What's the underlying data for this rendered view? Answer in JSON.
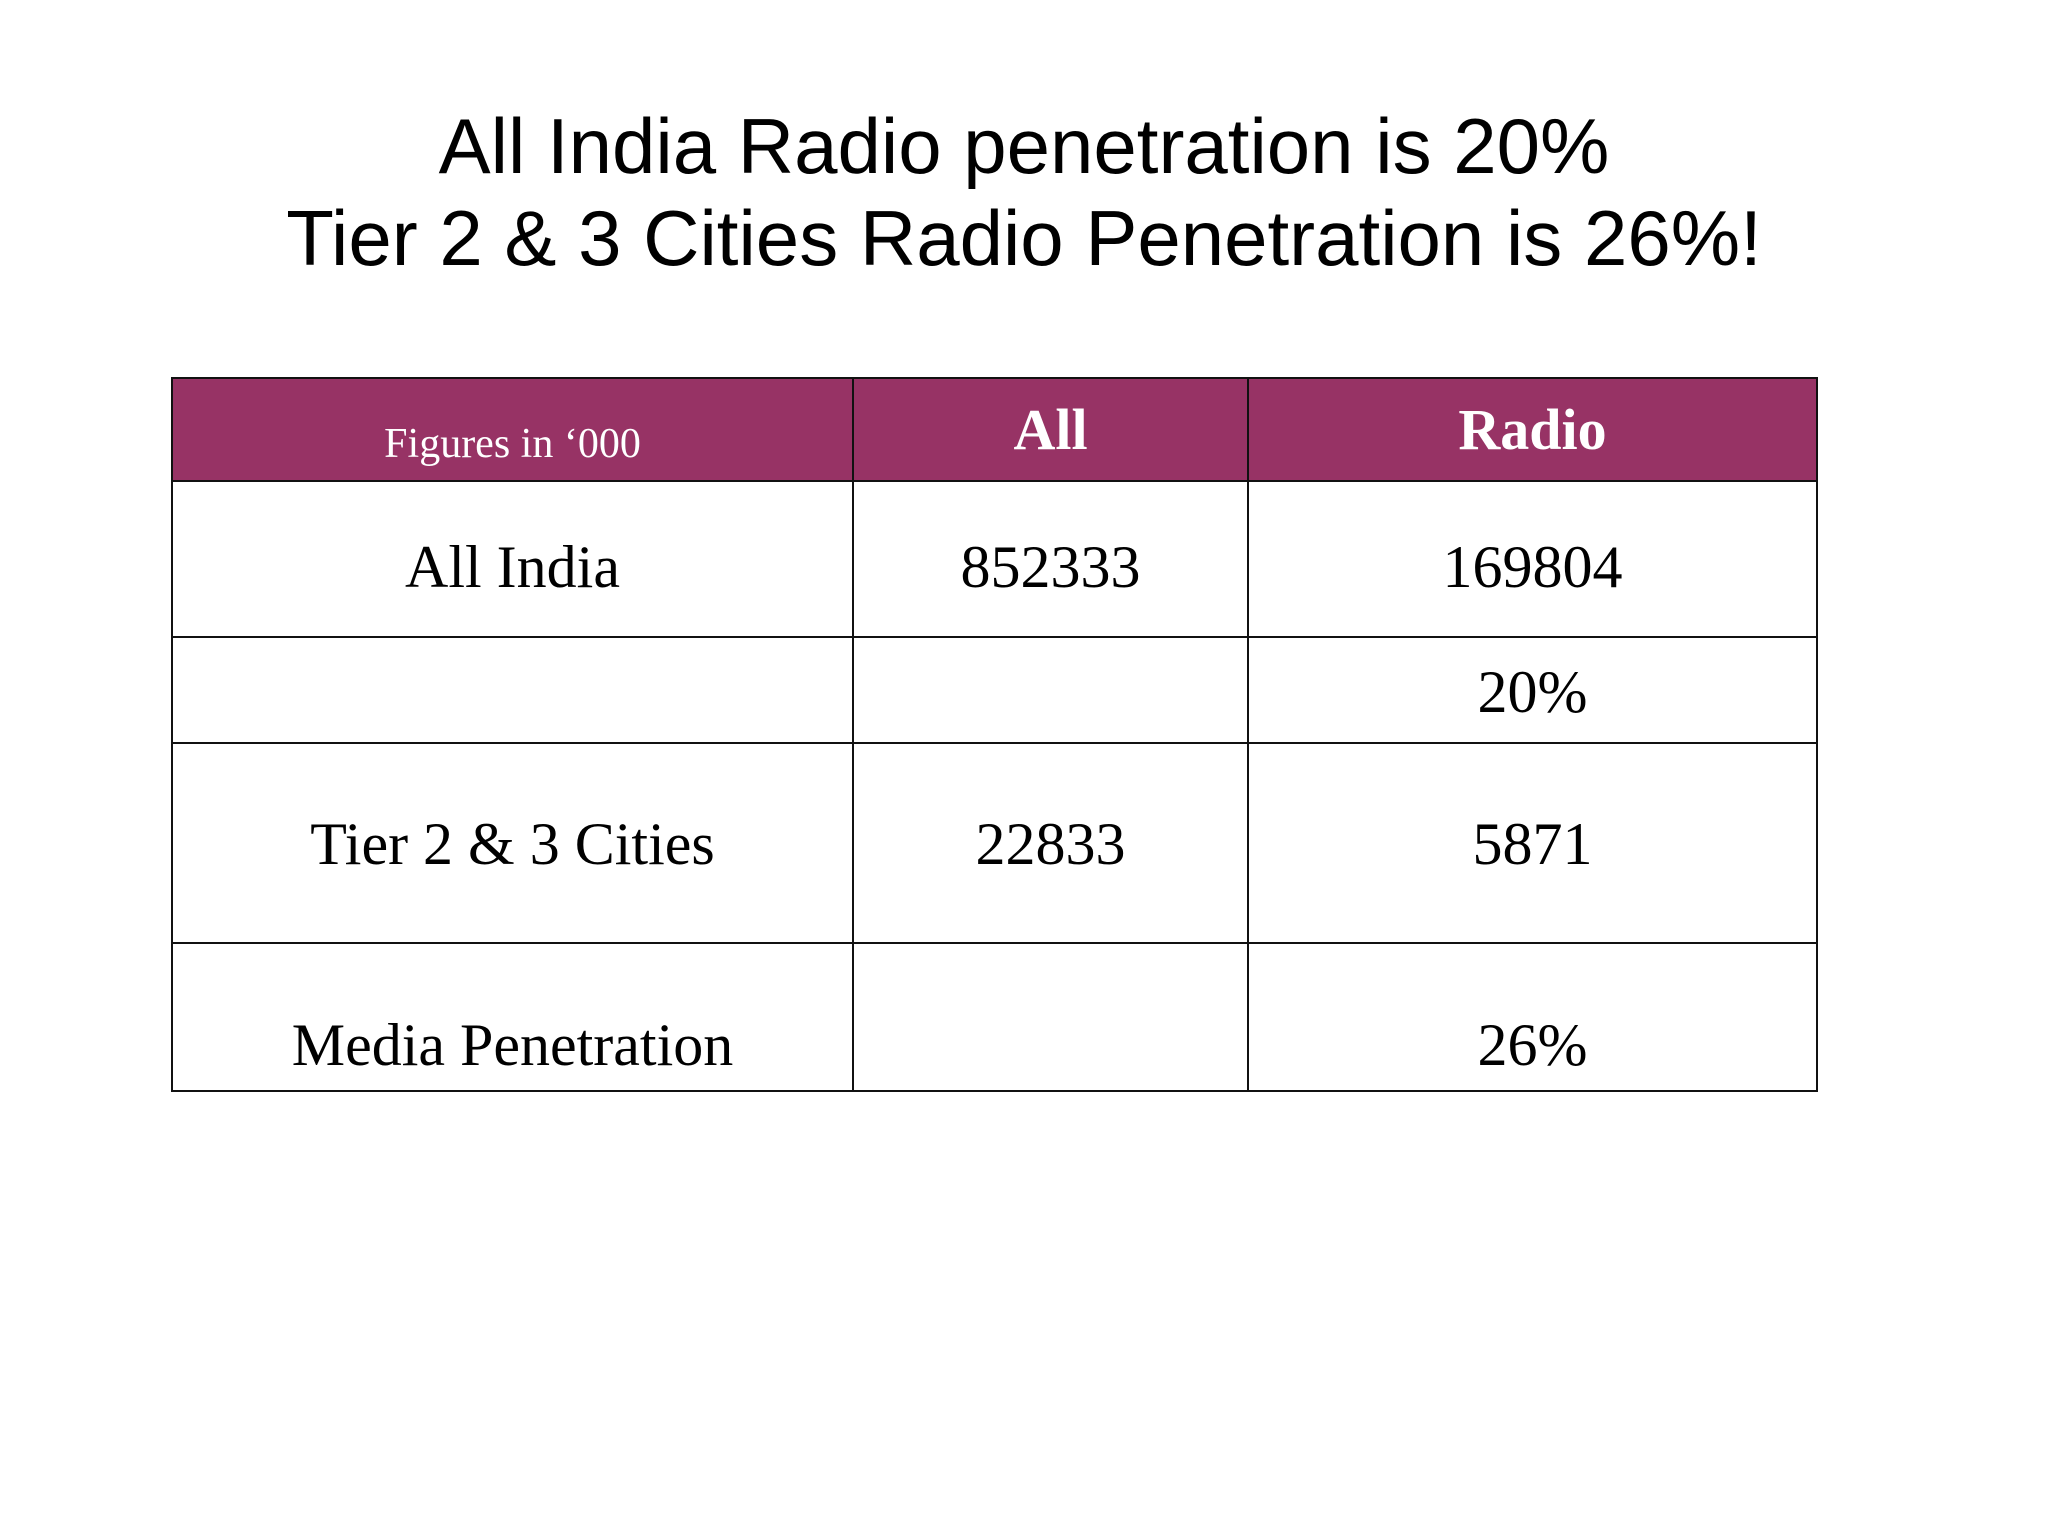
{
  "title": {
    "line1": "All India Radio penetration is 20%",
    "line2": "Tier 2 & 3 Cities Radio Penetration is 26%!"
  },
  "table": {
    "header": {
      "note": "Figures in ‘000",
      "col_all": "All",
      "col_radio": "Radio"
    },
    "rows": [
      {
        "label": "All India",
        "all": "852333",
        "radio": "169804"
      },
      {
        "label": "",
        "all": "",
        "radio": "20%"
      },
      {
        "label": "Tier 2 & 3 Cities",
        "all": "22833",
        "radio": "5871"
      },
      {
        "label": "Media Penetration",
        "all": "",
        "radio": "26%"
      }
    ]
  },
  "colors": {
    "header_bg": "#973365",
    "header_text": "#ffffff",
    "highlight": "#e8141b"
  }
}
